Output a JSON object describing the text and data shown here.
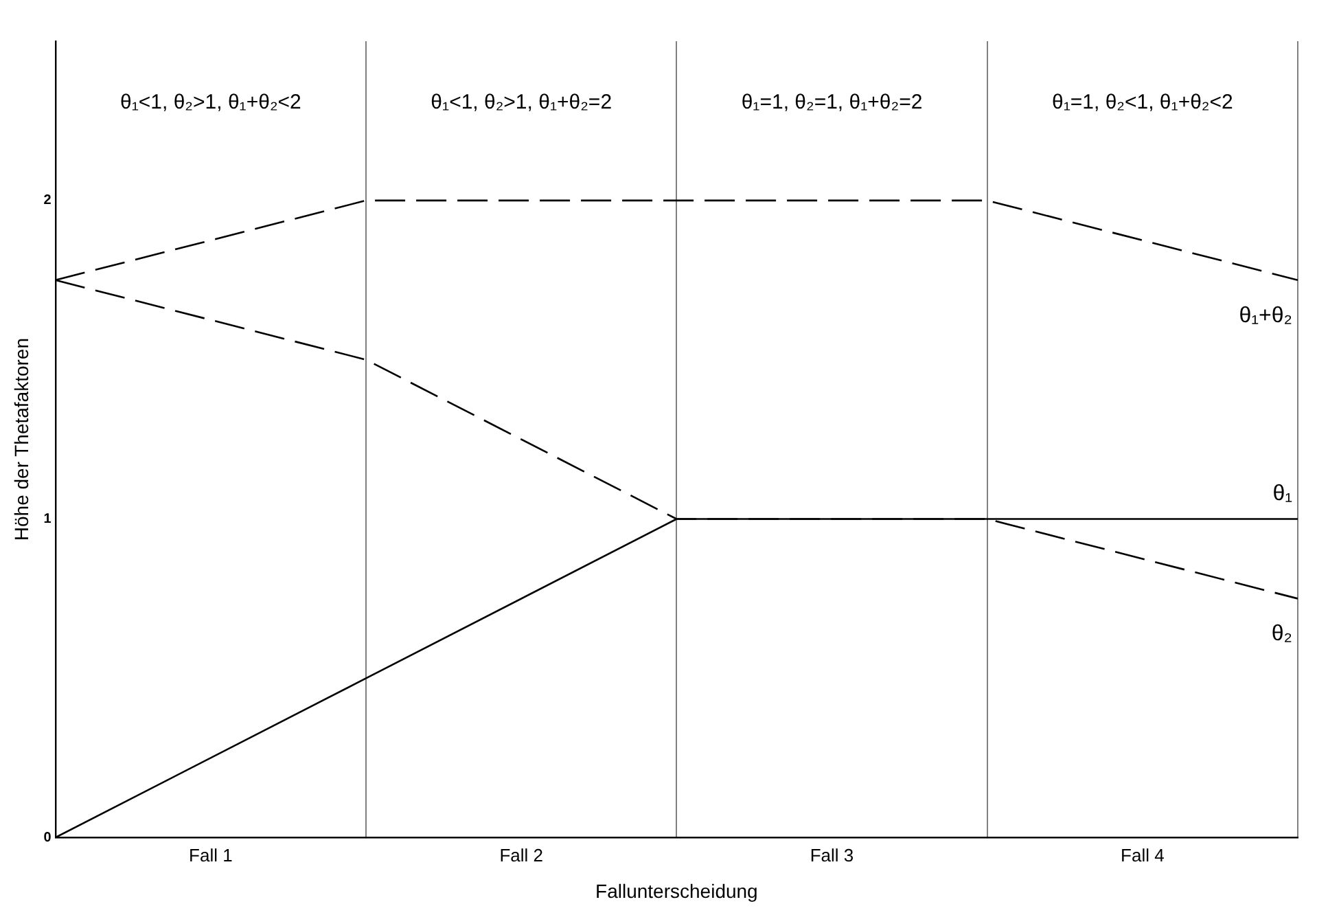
{
  "chart_data": {
    "type": "line",
    "xlabel": "Fallunterscheidung",
    "ylabel": "Höhe der Thetafaktoren",
    "categories": [
      null,
      null,
      null,
      null,
      null
    ],
    "series": [
      {
        "name": "θ₁+θ₂",
        "color": "#000000",
        "values": [
          1.75,
          2,
          2,
          2,
          1.75
        ],
        "line_style": "dashed"
      },
      {
        "name": "θ₁",
        "color": "#000000",
        "values": [
          0,
          0.5,
          1,
          1,
          1
        ],
        "line_style": "solid"
      },
      {
        "name": "θ₂",
        "color": "#000000",
        "values": [
          1.75,
          1.5,
          1,
          1,
          0.75
        ],
        "line_style": "dashed"
      }
    ],
    "ylim": [
      0,
      2.5
    ],
    "yticks": [
      0,
      1,
      2
    ],
    "annotations": [
      "θ₁<1, θ₂>1, θ₁+θ₂<2",
      "θ₁<1, θ₂>1, θ₁+θ₂=2",
      "θ₁=1, θ₂=1, θ₁+θ₂=2",
      "θ₁=1, θ₂<1, θ₁+θ₂<2",
      "Fall 1",
      "Fall 2",
      "Fall 3",
      "Fall 4"
    ],
    "grid": "x",
    "legend": false,
    "marker": "none"
  }
}
